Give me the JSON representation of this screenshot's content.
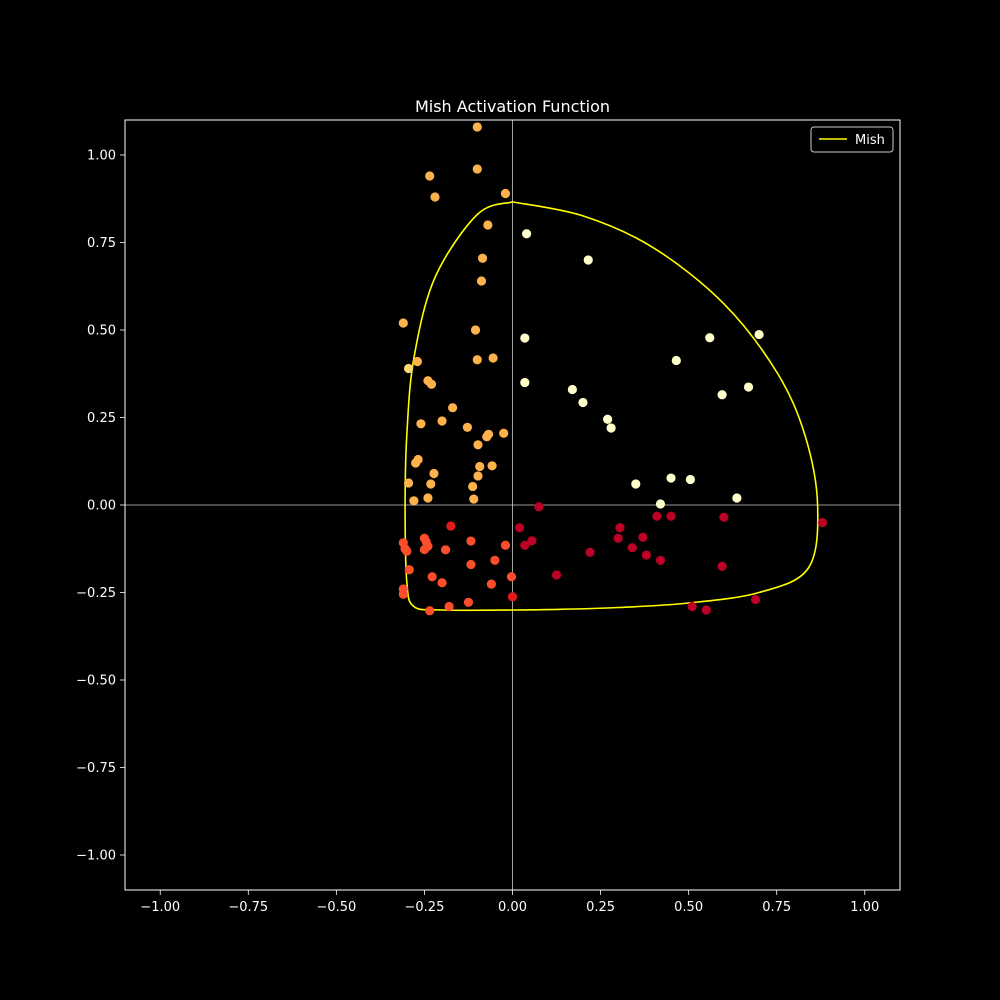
{
  "chart_data": {
    "type": "scatter",
    "title": "Mish Activation Function",
    "xlabel": "",
    "ylabel": "",
    "xlim": [
      -1.1,
      1.1
    ],
    "ylim": [
      -1.1,
      1.1
    ],
    "xticks": [
      -1.0,
      -0.75,
      -0.5,
      -0.25,
      0.0,
      0.25,
      0.5,
      0.75,
      1.0
    ],
    "yticks": [
      -1.0,
      -0.75,
      -0.5,
      -0.25,
      0.0,
      0.25,
      0.5,
      0.75,
      1.0
    ],
    "xtick_labels": [
      "−1.00",
      "−0.75",
      "−0.50",
      "−0.25",
      "0.00",
      "0.25",
      "0.50",
      "0.75",
      "1.00"
    ],
    "ytick_labels": [
      "−1.00",
      "−0.75",
      "−0.50",
      "−0.25",
      "0.00",
      "0.25",
      "0.50",
      "0.75",
      "1.00"
    ],
    "grid": false,
    "legend_position": "top-right",
    "background": "#000000",
    "foreground": "#ffffff",
    "zero_lines": true,
    "series": [
      {
        "name": "Mish",
        "kind": "line",
        "color": "#ffff00",
        "description_of_shape": "closed curve through (0,0.866),(0.866,0),(0,-0.3),(-0.3,0)",
        "points": [
          [
            0.0,
            0.866
          ],
          [
            0.2,
            0.826
          ],
          [
            0.4,
            0.735
          ],
          [
            0.6,
            0.575
          ],
          [
            0.75,
            0.38
          ],
          [
            0.83,
            0.2
          ],
          [
            0.866,
            0.0
          ],
          [
            0.84,
            -0.18
          ],
          [
            0.7,
            -0.25
          ],
          [
            0.5,
            -0.28
          ],
          [
            0.3,
            -0.293
          ],
          [
            0.1,
            -0.299
          ],
          [
            0.0,
            -0.3
          ],
          [
            -0.2,
            -0.3
          ],
          [
            -0.28,
            -0.29
          ],
          [
            -0.3,
            -0.22
          ],
          [
            -0.305,
            0.0
          ],
          [
            -0.3,
            0.2
          ],
          [
            -0.28,
            0.42
          ],
          [
            -0.22,
            0.65
          ],
          [
            -0.1,
            0.83
          ],
          [
            0.0,
            0.866
          ]
        ]
      },
      {
        "kind": "scatter",
        "points": [
          {
            "x": -0.1,
            "y": 1.08,
            "c": "#feb24c"
          },
          {
            "x": -0.1,
            "y": 0.96,
            "c": "#feb24c"
          },
          {
            "x": -0.235,
            "y": 0.94,
            "c": "#feb24c"
          },
          {
            "x": -0.02,
            "y": 0.89,
            "c": "#feb24c"
          },
          {
            "x": -0.22,
            "y": 0.88,
            "c": "#feb24c"
          },
          {
            "x": -0.07,
            "y": 0.8,
            "c": "#feb24c"
          },
          {
            "x": -0.085,
            "y": 0.705,
            "c": "#feb24c"
          },
          {
            "x": -0.088,
            "y": 0.64,
            "c": "#feb24c"
          },
          {
            "x": -0.31,
            "y": 0.52,
            "c": "#feb24c"
          },
          {
            "x": -0.105,
            "y": 0.5,
            "c": "#feb24c"
          },
          {
            "x": -0.1,
            "y": 0.415,
            "c": "#feb24c"
          },
          {
            "x": -0.055,
            "y": 0.42,
            "c": "#feb24c"
          },
          {
            "x": -0.27,
            "y": 0.41,
            "c": "#feb24c"
          },
          {
            "x": -0.295,
            "y": 0.39,
            "c": "#fed976"
          },
          {
            "x": -0.24,
            "y": 0.355,
            "c": "#feb24c"
          },
          {
            "x": -0.23,
            "y": 0.345,
            "c": "#feb24c"
          },
          {
            "x": -0.17,
            "y": 0.278,
            "c": "#feb24c"
          },
          {
            "x": -0.2,
            "y": 0.24,
            "c": "#feb24c"
          },
          {
            "x": -0.26,
            "y": 0.232,
            "c": "#feb24c"
          },
          {
            "x": -0.128,
            "y": 0.222,
            "c": "#feb24c"
          },
          {
            "x": -0.025,
            "y": 0.205,
            "c": "#feb24c"
          },
          {
            "x": -0.068,
            "y": 0.202,
            "c": "#feb24c"
          },
          {
            "x": -0.073,
            "y": 0.195,
            "c": "#feb24c"
          },
          {
            "x": -0.098,
            "y": 0.172,
            "c": "#feb24c"
          },
          {
            "x": -0.268,
            "y": 0.13,
            "c": "#feb24c"
          },
          {
            "x": -0.275,
            "y": 0.12,
            "c": "#feb24c"
          },
          {
            "x": -0.058,
            "y": 0.112,
            "c": "#feb24c"
          },
          {
            "x": -0.093,
            "y": 0.11,
            "c": "#feb24c"
          },
          {
            "x": -0.223,
            "y": 0.09,
            "c": "#feb24c"
          },
          {
            "x": -0.098,
            "y": 0.083,
            "c": "#feb24c"
          },
          {
            "x": -0.295,
            "y": 0.063,
            "c": "#feb24c"
          },
          {
            "x": -0.232,
            "y": 0.06,
            "c": "#feb24c"
          },
          {
            "x": -0.113,
            "y": 0.053,
            "c": "#feb24c"
          },
          {
            "x": -0.24,
            "y": 0.02,
            "c": "#feb24c"
          },
          {
            "x": -0.11,
            "y": 0.017,
            "c": "#feb24c"
          },
          {
            "x": -0.28,
            "y": 0.012,
            "c": "#feb24c"
          },
          {
            "x": 0.04,
            "y": 0.775,
            "c": "#ffffcc"
          },
          {
            "x": 0.215,
            "y": 0.7,
            "c": "#ffffcc"
          },
          {
            "x": 0.7,
            "y": 0.487,
            "c": "#ffffcc"
          },
          {
            "x": 0.035,
            "y": 0.477,
            "c": "#ffffcc"
          },
          {
            "x": 0.56,
            "y": 0.478,
            "c": "#ffffcc"
          },
          {
            "x": 0.465,
            "y": 0.413,
            "c": "#ffffcc"
          },
          {
            "x": 0.035,
            "y": 0.35,
            "c": "#ffffcc"
          },
          {
            "x": 0.67,
            "y": 0.337,
            "c": "#ffffcc"
          },
          {
            "x": 0.17,
            "y": 0.33,
            "c": "#ffffcc"
          },
          {
            "x": 0.595,
            "y": 0.315,
            "c": "#ffffcc"
          },
          {
            "x": 0.2,
            "y": 0.293,
            "c": "#ffffcc"
          },
          {
            "x": 0.27,
            "y": 0.245,
            "c": "#ffffcc"
          },
          {
            "x": 0.28,
            "y": 0.22,
            "c": "#ffffcc"
          },
          {
            "x": 0.45,
            "y": 0.077,
            "c": "#ffffcc"
          },
          {
            "x": 0.505,
            "y": 0.073,
            "c": "#ffffcc"
          },
          {
            "x": 0.35,
            "y": 0.06,
            "c": "#ffffcc"
          },
          {
            "x": 0.637,
            "y": 0.02,
            "c": "#ffffcc"
          },
          {
            "x": 0.42,
            "y": 0.003,
            "c": "#ffffcc"
          },
          {
            "x": -0.175,
            "y": -0.06,
            "c": "#e31a1c"
          },
          {
            "x": -0.118,
            "y": -0.103,
            "c": "#fc4e2a"
          },
          {
            "x": -0.25,
            "y": -0.095,
            "c": "#fc4e2a"
          },
          {
            "x": -0.245,
            "y": -0.105,
            "c": "#fc4e2a"
          },
          {
            "x": -0.31,
            "y": -0.108,
            "c": "#fc4e2a"
          },
          {
            "x": -0.02,
            "y": -0.115,
            "c": "#fc4e2a"
          },
          {
            "x": -0.24,
            "y": -0.118,
            "c": "#fc4e2a"
          },
          {
            "x": -0.305,
            "y": -0.125,
            "c": "#fc4e2a"
          },
          {
            "x": -0.25,
            "y": -0.127,
            "c": "#fc4e2a"
          },
          {
            "x": -0.19,
            "y": -0.128,
            "c": "#fc4e2a"
          },
          {
            "x": -0.3,
            "y": -0.132,
            "c": "#fc4e2a"
          },
          {
            "x": -0.05,
            "y": -0.158,
            "c": "#fc4e2a"
          },
          {
            "x": -0.118,
            "y": -0.17,
            "c": "#fc4e2a"
          },
          {
            "x": -0.293,
            "y": -0.185,
            "c": "#fc4e2a"
          },
          {
            "x": -0.003,
            "y": -0.205,
            "c": "#fc4e2a"
          },
          {
            "x": -0.228,
            "y": -0.205,
            "c": "#fc4e2a"
          },
          {
            "x": -0.2,
            "y": -0.222,
            "c": "#fc4e2a"
          },
          {
            "x": -0.06,
            "y": -0.226,
            "c": "#fc4e2a"
          },
          {
            "x": -0.31,
            "y": -0.24,
            "c": "#fc4e2a"
          },
          {
            "x": -0.31,
            "y": -0.255,
            "c": "#fc4e2a"
          },
          {
            "x": 0.0,
            "y": -0.262,
            "c": "#e31a1c"
          },
          {
            "x": -0.125,
            "y": -0.278,
            "c": "#fc4e2a"
          },
          {
            "x": -0.18,
            "y": -0.29,
            "c": "#fc4e2a"
          },
          {
            "x": -0.235,
            "y": -0.302,
            "c": "#fc4e2a"
          },
          {
            "x": 0.075,
            "y": -0.005,
            "c": "#bd0026"
          },
          {
            "x": 0.41,
            "y": -0.032,
            "c": "#bd0026"
          },
          {
            "x": 0.45,
            "y": -0.032,
            "c": "#bd0026"
          },
          {
            "x": 0.6,
            "y": -0.035,
            "c": "#bd0026"
          },
          {
            "x": 0.88,
            "y": -0.05,
            "c": "#bd0026"
          },
          {
            "x": 0.02,
            "y": -0.065,
            "c": "#bd0026"
          },
          {
            "x": 0.305,
            "y": -0.065,
            "c": "#bd0026"
          },
          {
            "x": 0.37,
            "y": -0.092,
            "c": "#bd0026"
          },
          {
            "x": 0.3,
            "y": -0.095,
            "c": "#bd0026"
          },
          {
            "x": 0.055,
            "y": -0.102,
            "c": "#bd0026"
          },
          {
            "x": 0.035,
            "y": -0.115,
            "c": "#bd0026"
          },
          {
            "x": 0.34,
            "y": -0.122,
            "c": "#bd0026"
          },
          {
            "x": 0.22,
            "y": -0.135,
            "c": "#bd0026"
          },
          {
            "x": 0.38,
            "y": -0.143,
            "c": "#bd0026"
          },
          {
            "x": 0.42,
            "y": -0.158,
            "c": "#bd0026"
          },
          {
            "x": 0.595,
            "y": -0.175,
            "c": "#bd0026"
          },
          {
            "x": 0.125,
            "y": -0.2,
            "c": "#bd0026"
          },
          {
            "x": 0.69,
            "y": -0.27,
            "c": "#bd0026"
          },
          {
            "x": 0.51,
            "y": -0.29,
            "c": "#bd0026"
          },
          {
            "x": 0.55,
            "y": -0.3,
            "c": "#bd0026"
          }
        ]
      }
    ]
  }
}
